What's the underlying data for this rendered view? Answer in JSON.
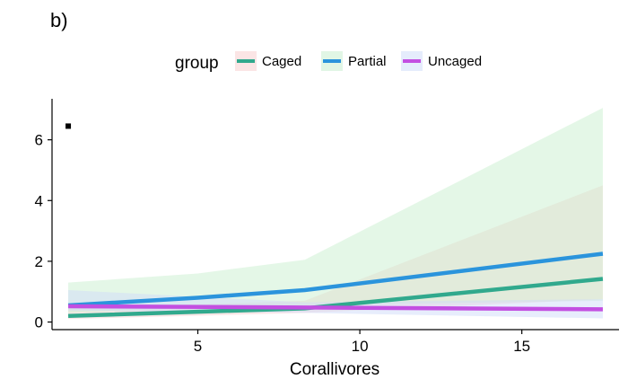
{
  "panel_label": "b)",
  "chart_data": {
    "type": "line",
    "xlabel": "Corallivores",
    "ylabel": "",
    "xlim": [
      0.5,
      18
    ],
    "ylim": [
      -0.25,
      7.35
    ],
    "x_ticks": [
      5,
      10,
      15
    ],
    "y_ticks": [
      0,
      2,
      4,
      6
    ],
    "grid": false,
    "legend": {
      "title": "group",
      "position": "top"
    },
    "annotations": [
      {
        "type": "point",
        "x": 1,
        "y": 6.45
      }
    ],
    "series": [
      {
        "name": "Caged",
        "color": "#31a98d",
        "fill": "#f7cfcf",
        "x": [
          1,
          8.3,
          17.5
        ],
        "y": [
          0.2,
          0.45,
          1.42
        ],
        "lower": [
          0.1,
          0.3,
          0.75
        ],
        "upper": [
          0.45,
          0.7,
          4.5
        ]
      },
      {
        "name": "Partial",
        "color": "#2b94dc",
        "fill": "#c9efcf",
        "x": [
          1,
          5,
          8.3,
          17.5
        ],
        "y": [
          0.55,
          0.8,
          1.05,
          2.25
        ],
        "lower": [
          0.3,
          0.45,
          0.55,
          0.7
        ],
        "upper": [
          1.3,
          1.6,
          2.05,
          7.05
        ]
      },
      {
        "name": "Uncaged",
        "color": "#c34fe1",
        "fill": "#cfdcfa",
        "x": [
          1,
          8.3,
          17.5
        ],
        "y": [
          0.52,
          0.48,
          0.42
        ],
        "lower": [
          0.38,
          0.3,
          0.12
        ],
        "upper": [
          1.05,
          0.65,
          0.75
        ]
      }
    ]
  }
}
